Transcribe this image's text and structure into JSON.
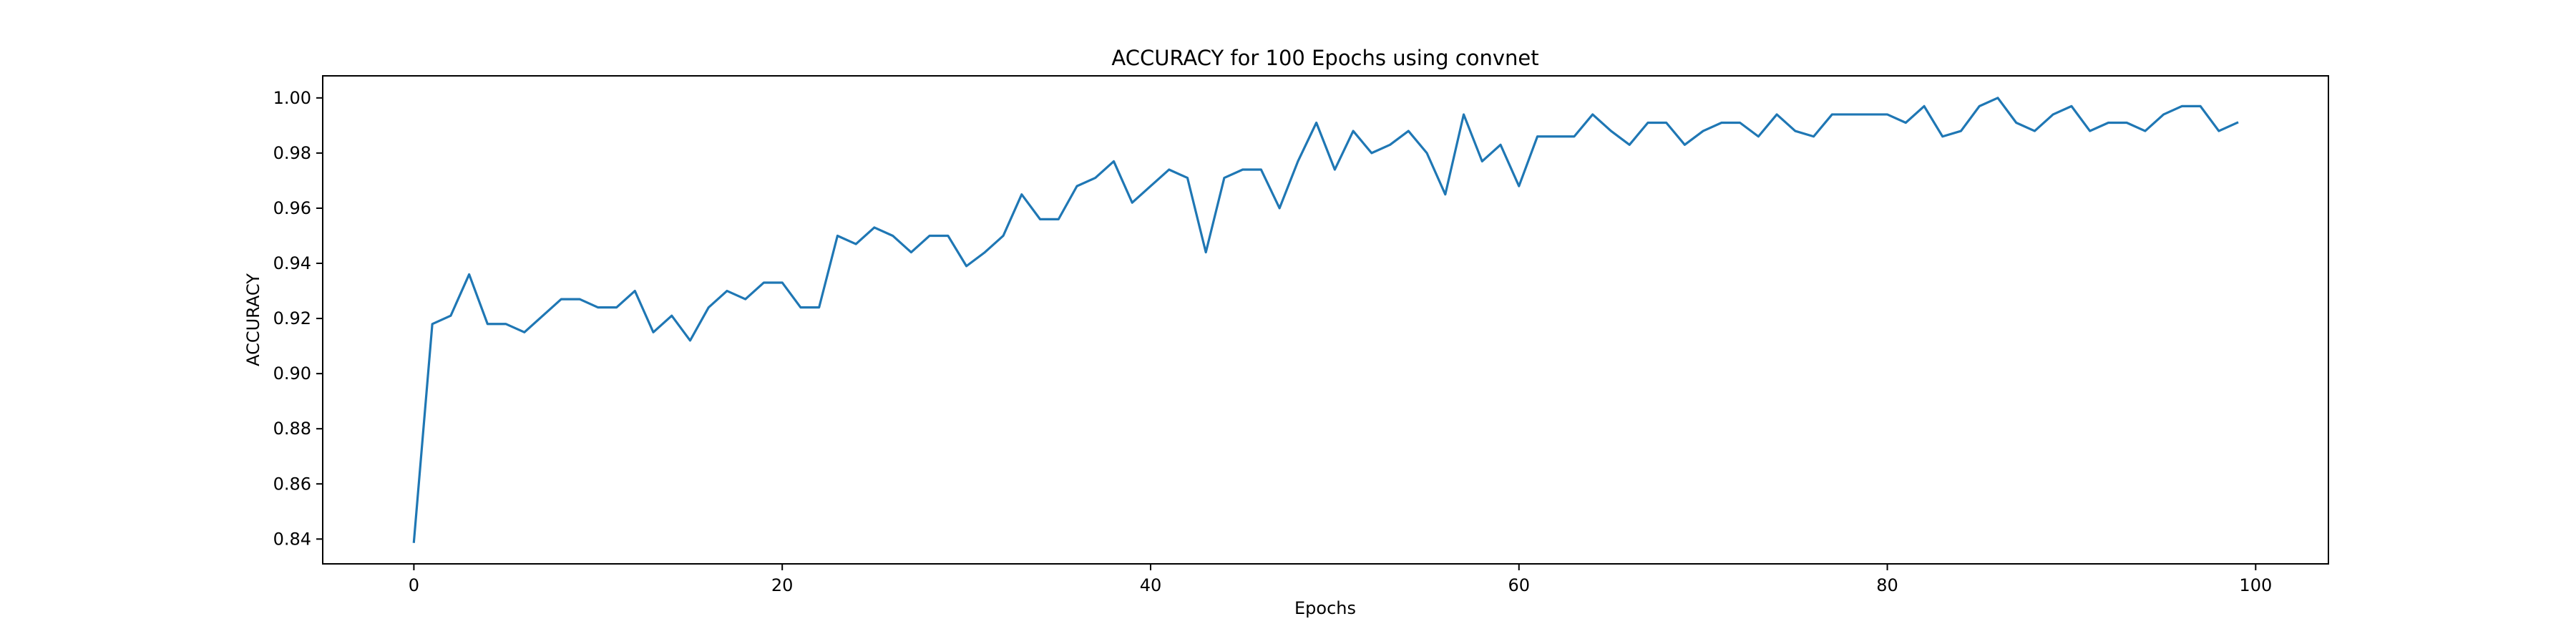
{
  "chart_data": {
    "type": "line",
    "title": "ACCURACY for 100 Epochs using convnet",
    "xlabel": "Epochs",
    "ylabel": "ACCURACY",
    "xlim": [
      -4.95,
      103.95
    ],
    "ylim": [
      0.831,
      1.008
    ],
    "x_ticks": [
      0,
      20,
      40,
      60,
      80,
      100
    ],
    "y_ticks": [
      0.84,
      0.86,
      0.88,
      0.9,
      0.92,
      0.94,
      0.96,
      0.98,
      1.0
    ],
    "x_tick_labels": [
      "0",
      "20",
      "40",
      "60",
      "80",
      "100"
    ],
    "y_tick_labels": [
      "0.84",
      "0.86",
      "0.88",
      "0.90",
      "0.92",
      "0.94",
      "0.96",
      "0.98",
      "1.00"
    ],
    "grid": false,
    "series": [
      {
        "color": "#1f77b4",
        "x": [
          0,
          1,
          2,
          3,
          4,
          5,
          6,
          7,
          8,
          9,
          10,
          11,
          12,
          13,
          14,
          15,
          16,
          17,
          18,
          19,
          20,
          21,
          22,
          23,
          24,
          25,
          26,
          27,
          28,
          29,
          30,
          31,
          32,
          33,
          34,
          35,
          36,
          37,
          38,
          39,
          40,
          41,
          42,
          43,
          44,
          45,
          46,
          47,
          48,
          49,
          50,
          51,
          52,
          53,
          54,
          55,
          56,
          57,
          58,
          59,
          60,
          61,
          62,
          63,
          64,
          65,
          66,
          67,
          68,
          69,
          70,
          71,
          72,
          73,
          74,
          75,
          76,
          77,
          78,
          79,
          80,
          81,
          82,
          83,
          84,
          85,
          86,
          87,
          88,
          89,
          90,
          91,
          92,
          93,
          94,
          95,
          96,
          97,
          98,
          99
        ],
        "values": [
          0.839,
          0.918,
          0.921,
          0.936,
          0.918,
          0.918,
          0.915,
          0.921,
          0.927,
          0.927,
          0.924,
          0.924,
          0.93,
          0.915,
          0.921,
          0.912,
          0.924,
          0.93,
          0.927,
          0.933,
          0.933,
          0.924,
          0.924,
          0.95,
          0.947,
          0.953,
          0.95,
          0.944,
          0.95,
          0.95,
          0.939,
          0.944,
          0.95,
          0.965,
          0.956,
          0.956,
          0.968,
          0.971,
          0.977,
          0.962,
          0.968,
          0.974,
          0.971,
          0.944,
          0.971,
          0.974,
          0.974,
          0.96,
          0.977,
          0.991,
          0.974,
          0.988,
          0.98,
          0.983,
          0.988,
          0.98,
          0.965,
          0.994,
          0.977,
          0.983,
          0.968,
          0.986,
          0.986,
          0.986,
          0.994,
          0.988,
          0.983,
          0.991,
          0.991,
          0.983,
          0.988,
          0.991,
          0.991,
          0.986,
          0.994,
          0.988,
          0.986,
          0.994,
          0.994,
          0.994,
          0.994,
          0.991,
          0.997,
          0.986,
          0.988,
          0.997,
          1.0,
          0.991,
          0.988,
          0.994,
          0.997,
          0.988,
          0.991,
          0.991,
          0.988,
          0.994,
          0.997,
          0.997,
          0.988,
          0.991
        ]
      }
    ]
  }
}
